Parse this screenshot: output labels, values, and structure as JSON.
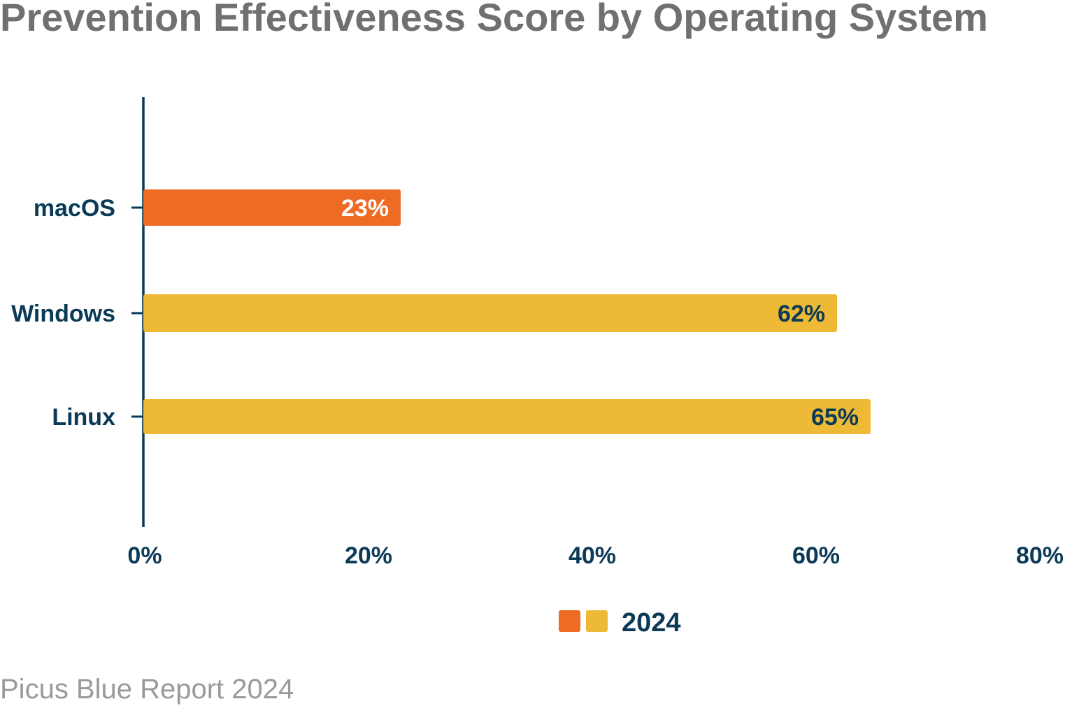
{
  "colors": {
    "title": "#707070",
    "axis": "#0b3a57",
    "text": "#0b3a57",
    "macos_bar": "#ee6b24",
    "other_bar": "#eeb935",
    "data_label_light": "#ffffff",
    "data_label_dark": "#0b3a57",
    "source": "#9a9a9a"
  },
  "chart_data": {
    "type": "bar",
    "orientation": "horizontal",
    "title": "Prevention Effectiveness Score by Operating System",
    "categories": [
      "macOS",
      "Windows",
      "Linux"
    ],
    "series": [
      {
        "name": "2024",
        "values": [
          23,
          62,
          65
        ],
        "data_labels": [
          "23%",
          "62%",
          "65%"
        ],
        "bar_colors": [
          "#ee6b24",
          "#eeb935",
          "#eeb935"
        ]
      }
    ],
    "x_ticks": [
      "0%",
      "20%",
      "40%",
      "60%",
      "80%"
    ],
    "xlim": [
      0,
      80
    ],
    "grid": false,
    "legend": {
      "position": "bottom",
      "label": "2024",
      "swatch_colors": [
        "#ee6b24",
        "#eeb935"
      ]
    }
  },
  "source": "Picus Blue Report 2024"
}
